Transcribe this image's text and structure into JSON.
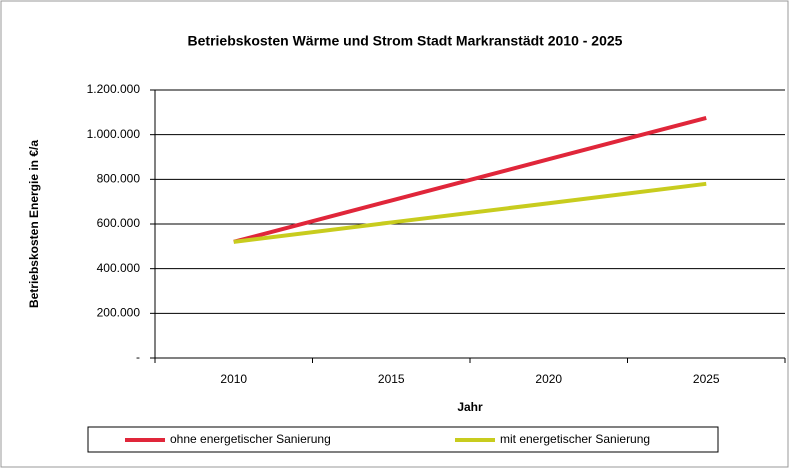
{
  "chart_data": {
    "type": "line",
    "title": "Betriebskosten Wärme und Strom Stadt Markranstädt 2010 - 2025",
    "x_label": "Jahr",
    "y_label": "Betriebskosten Energie in €/a",
    "categories": [
      "2010",
      "2015",
      "2020",
      "2025"
    ],
    "series": [
      {
        "name": "ohne energetischer Sanierung",
        "color": "#e0263a",
        "values": [
          520000,
          705000,
          890000,
          1075000
        ]
      },
      {
        "name": "mit energetischer Sanierung",
        "color": "#c8cc1e",
        "values": [
          520000,
          607000,
          693000,
          780000
        ]
      }
    ],
    "ylim": [
      0,
      1200000
    ],
    "yticks": [
      {
        "value": 0,
        "label": "-"
      },
      {
        "value": 200000,
        "label": "200.000"
      },
      {
        "value": 400000,
        "label": "400.000"
      },
      {
        "value": 600000,
        "label": "600.000"
      },
      {
        "value": 800000,
        "label": "800.000"
      },
      {
        "value": 1000000,
        "label": "1.000.000"
      },
      {
        "value": 1200000,
        "label": "1.200.000"
      }
    ],
    "grid": true,
    "legend": "bottom"
  }
}
